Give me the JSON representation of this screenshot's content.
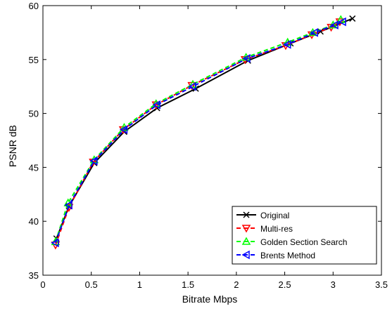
{
  "chart_data": {
    "type": "line",
    "title": "",
    "xlabel": "Bitrate Mbps",
    "ylabel": "PSNR dB",
    "xlim": [
      0,
      3.5
    ],
    "ylim": [
      35,
      60
    ],
    "xticks": [
      0,
      0.5,
      1,
      1.5,
      2,
      2.5,
      3,
      3.5
    ],
    "xtick_labels": [
      "0",
      "0.5",
      "1",
      "1.5",
      "2",
      "2.5",
      "3",
      "3.5"
    ],
    "yticks": [
      35,
      40,
      45,
      50,
      55,
      60
    ],
    "ytick_labels": [
      "35",
      "40",
      "45",
      "50",
      "55",
      "60"
    ],
    "grid": false,
    "legend_position": "bottom-right",
    "series": [
      {
        "name": "Original",
        "color": "#000000",
        "line_style": "solid",
        "marker": "x",
        "x": [
          0.14,
          0.27,
          0.53,
          0.84,
          1.18,
          1.58,
          2.12,
          2.56,
          2.87,
          3.2
        ],
        "y": [
          38.4,
          41.4,
          45.4,
          48.3,
          50.5,
          52.3,
          54.9,
          56.5,
          57.6,
          58.8
        ]
      },
      {
        "name": "Multi-res",
        "color": "#ff0000",
        "line_style": "dashed",
        "marker": "triangle-down",
        "x": [
          0.13,
          0.27,
          0.52,
          0.83,
          1.17,
          1.54,
          2.09,
          2.51,
          2.78,
          2.98,
          3.07
        ],
        "y": [
          37.8,
          41.3,
          45.5,
          48.5,
          50.8,
          52.6,
          55.0,
          56.3,
          57.3,
          58.0,
          58.5
        ]
      },
      {
        "name": "Golden Section Search",
        "color": "#00ff00",
        "line_style": "dashed",
        "marker": "triangle-up",
        "x": [
          0.13,
          0.26,
          0.53,
          0.84,
          1.17,
          1.55,
          2.1,
          2.53,
          2.79,
          3.0,
          3.08
        ],
        "y": [
          38.1,
          41.7,
          45.7,
          48.7,
          50.9,
          52.7,
          55.2,
          56.6,
          57.5,
          58.2,
          58.7
        ]
      },
      {
        "name": "Brents Method",
        "color": "#0000ff",
        "line_style": "dashed",
        "marker": "triangle-left",
        "x": [
          0.13,
          0.27,
          0.53,
          0.84,
          1.18,
          1.55,
          2.11,
          2.53,
          2.81,
          3.02,
          3.1
        ],
        "y": [
          38.0,
          41.5,
          45.6,
          48.5,
          50.8,
          52.5,
          55.1,
          56.4,
          57.5,
          58.2,
          58.5
        ]
      }
    ]
  }
}
